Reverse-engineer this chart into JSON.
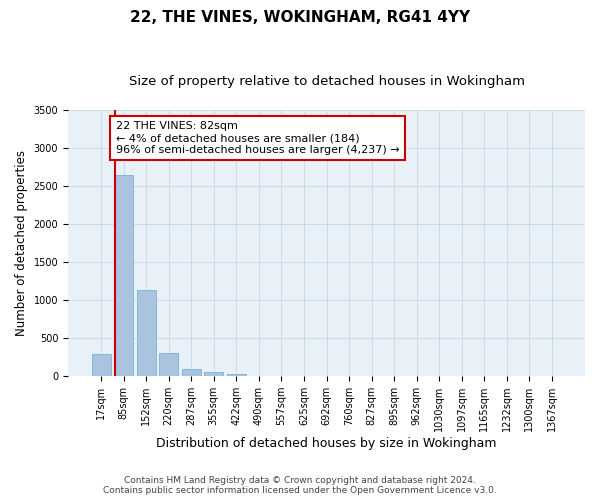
{
  "title": "22, THE VINES, WOKINGHAM, RG41 4YY",
  "subtitle": "Size of property relative to detached houses in Wokingham",
  "xlabel": "Distribution of detached houses by size in Wokingham",
  "ylabel": "Number of detached properties",
  "footer_line1": "Contains HM Land Registry data © Crown copyright and database right 2024.",
  "footer_line2": "Contains public sector information licensed under the Open Government Licence v3.0.",
  "categories": [
    "17sqm",
    "85sqm",
    "152sqm",
    "220sqm",
    "287sqm",
    "355sqm",
    "422sqm",
    "490sqm",
    "557sqm",
    "625sqm",
    "692sqm",
    "760sqm",
    "827sqm",
    "895sqm",
    "962sqm",
    "1030sqm",
    "1097sqm",
    "1165sqm",
    "1232sqm",
    "1300sqm",
    "1367sqm"
  ],
  "values": [
    290,
    2650,
    1140,
    300,
    95,
    50,
    30,
    5,
    0,
    0,
    0,
    0,
    0,
    0,
    0,
    0,
    0,
    0,
    0,
    0,
    0
  ],
  "bar_color": "#aac4e0",
  "bar_edge_color": "#6aaad4",
  "grid_color": "#ccd9e8",
  "bg_color": "#e8f0f8",
  "vline_color": "#cc0000",
  "annotation_text": "22 THE VINES: 82sqm\n← 4% of detached houses are smaller (184)\n96% of semi-detached houses are larger (4,237) →",
  "annotation_box_color": "#ffffff",
  "annotation_box_edge": "#cc0000",
  "ylim": [
    0,
    3500
  ],
  "yticks": [
    0,
    500,
    1000,
    1500,
    2000,
    2500,
    3000,
    3500
  ],
  "title_fontsize": 11,
  "subtitle_fontsize": 9.5,
  "xlabel_fontsize": 9,
  "ylabel_fontsize": 8.5,
  "tick_fontsize": 7,
  "annotation_fontsize": 8,
  "footer_fontsize": 6.5
}
